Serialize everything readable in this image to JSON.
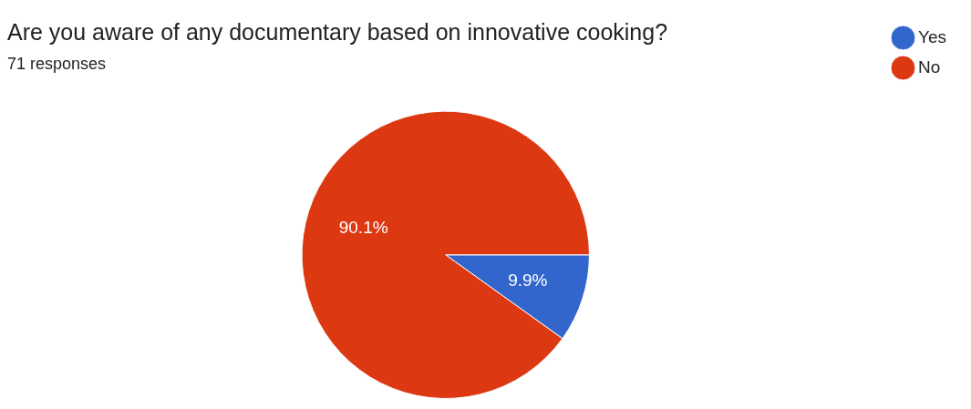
{
  "chart_data": {
    "type": "pie",
    "title": "Are you aware of any documentary based on innovative cooking?",
    "subtitle": "71 responses",
    "categories": [
      "Yes",
      "No"
    ],
    "values": [
      9.9,
      90.1
    ],
    "colors": [
      "#3366cc",
      "#dc3912"
    ],
    "value_labels": [
      "9.9%",
      "90.1%"
    ],
    "legend": "top right"
  }
}
